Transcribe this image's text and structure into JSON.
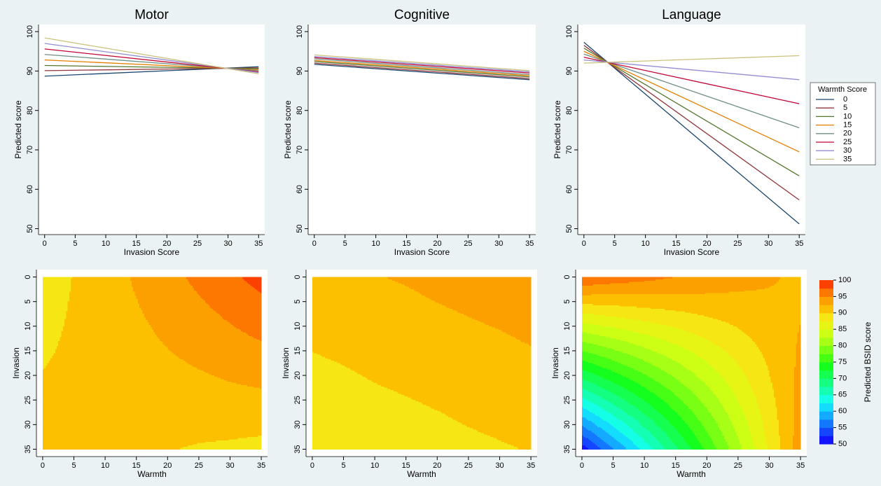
{
  "chart_data": [
    {
      "type": "line",
      "title": "Motor",
      "xlabel": "Invasion Score",
      "ylabel": "Predicted score",
      "x": [
        0,
        35
      ],
      "xlim": [
        -1,
        36
      ],
      "ylim": [
        48.5,
        101.8
      ],
      "xticks": [
        0,
        5,
        10,
        15,
        20,
        25,
        30,
        35
      ],
      "yticks": [
        50,
        60,
        70,
        80,
        90,
        100
      ],
      "series": [
        {
          "color": "#1a476f",
          "values": [
            88.7,
            91.1
          ]
        },
        {
          "color": "#90353b",
          "values": [
            90.1,
            90.8
          ]
        },
        {
          "color": "#55752f",
          "values": [
            91.4,
            90.6
          ]
        },
        {
          "color": "#e37e00",
          "values": [
            92.8,
            90.3
          ]
        },
        {
          "color": "#6e8e84",
          "values": [
            94.2,
            90.1
          ]
        },
        {
          "color": "#c10534",
          "values": [
            95.6,
            89.8
          ]
        },
        {
          "color": "#938dd2",
          "values": [
            97.0,
            89.6
          ]
        },
        {
          "color": "#cac27e",
          "values": [
            98.4,
            89.3
          ]
        }
      ]
    },
    {
      "type": "line",
      "title": "Cognitive",
      "xlabel": "Invasion Score",
      "ylabel": "Predicted score",
      "x": [
        0,
        35
      ],
      "xlim": [
        -1,
        36
      ],
      "ylim": [
        48.5,
        101.8
      ],
      "xticks": [
        0,
        5,
        10,
        15,
        20,
        25,
        30,
        35
      ],
      "yticks": [
        50,
        60,
        70,
        80,
        90,
        100
      ],
      "series": [
        {
          "color": "#1a476f",
          "values": [
            91.7,
            87.8
          ]
        },
        {
          "color": "#90353b",
          "values": [
            92.0,
            88.1
          ]
        },
        {
          "color": "#55752f",
          "values": [
            92.4,
            88.5
          ]
        },
        {
          "color": "#e37e00",
          "values": [
            92.7,
            88.8
          ]
        },
        {
          "color": "#6e8e84",
          "values": [
            93.1,
            89.1
          ]
        },
        {
          "color": "#c10534",
          "values": [
            93.4,
            89.5
          ]
        },
        {
          "color": "#938dd2",
          "values": [
            93.7,
            89.8
          ]
        },
        {
          "color": "#cac27e",
          "values": [
            94.1,
            90.1
          ]
        }
      ]
    },
    {
      "type": "line",
      "title": "Language",
      "xlabel": "Invasion Score",
      "ylabel": "Predicted score",
      "x": [
        0,
        35
      ],
      "xlim": [
        -1,
        36
      ],
      "ylim": [
        48.5,
        101.8
      ],
      "xticks": [
        0,
        5,
        10,
        15,
        20,
        25,
        30,
        35
      ],
      "yticks": [
        50,
        60,
        70,
        80,
        90,
        100
      ],
      "legend": "right",
      "legend_title": "Warmth Score",
      "series": [
        {
          "name": "0",
          "color": "#1a476f",
          "values": [
            97.3,
            51.2
          ]
        },
        {
          "name": "5",
          "color": "#90353b",
          "values": [
            96.5,
            57.3
          ]
        },
        {
          "name": "10",
          "color": "#55752f",
          "values": [
            95.8,
            63.4
          ]
        },
        {
          "name": "15",
          "color": "#e37e00",
          "values": [
            95.0,
            69.5
          ]
        },
        {
          "name": "20",
          "color": "#6e8e84",
          "values": [
            94.3,
            75.6
          ]
        },
        {
          "name": "25",
          "color": "#c10534",
          "values": [
            93.5,
            81.7
          ]
        },
        {
          "name": "30",
          "color": "#938dd2",
          "values": [
            92.8,
            87.8
          ]
        },
        {
          "name": "35",
          "color": "#cac27e",
          "values": [
            92.0,
            93.9
          ]
        }
      ]
    },
    {
      "type": "contour",
      "xlabel": "Warmth",
      "ylabel": "Invasion",
      "x": [
        0,
        5,
        10,
        15,
        20,
        25,
        30,
        35
      ],
      "y": [
        0,
        35
      ],
      "z": [
        [
          88.7,
          90.1,
          91.4,
          92.8,
          94.2,
          95.6,
          97.0,
          98.4
        ],
        [
          91.1,
          90.8,
          90.6,
          90.3,
          90.1,
          89.8,
          89.6,
          89.3
        ]
      ],
      "xlim": [
        -1,
        36
      ],
      "ylim": [
        -1.5,
        36.5
      ],
      "yreverse": true,
      "xticks": [
        0,
        5,
        10,
        15,
        20,
        25,
        30,
        35
      ],
      "yticks": [
        0,
        5,
        10,
        15,
        20,
        25,
        30,
        35
      ],
      "levels": [
        50,
        52.5,
        55,
        57.5,
        60,
        62.5,
        65,
        67.5,
        70,
        72.5,
        75,
        77.5,
        80,
        82.5,
        85,
        87.5,
        90,
        92.5,
        95,
        97.5,
        100
      ],
      "colors": [
        "#1414ff",
        "#1446ff",
        "#1478ff",
        "#14aaff",
        "#14dcff",
        "#14ffe6",
        "#14ffb4",
        "#14ff82",
        "#14ff50",
        "#14ff1e",
        "#46ff14",
        "#78ff14",
        "#a6ff14",
        "#ccff14",
        "#e6f514",
        "#f5e614",
        "#fcc000",
        "#fca000",
        "#fc7800",
        "#fc4000"
      ]
    },
    {
      "type": "contour",
      "xlabel": "Warmth",
      "ylabel": "Invasion",
      "x": [
        0,
        5,
        10,
        15,
        20,
        25,
        30,
        35
      ],
      "y": [
        0,
        35
      ],
      "z": [
        [
          91.7,
          92.0,
          92.4,
          92.7,
          93.1,
          93.4,
          93.7,
          94.1
        ],
        [
          87.8,
          88.1,
          88.5,
          88.8,
          89.1,
          89.5,
          89.8,
          90.1
        ]
      ],
      "xlim": [
        -1,
        36
      ],
      "ylim": [
        -1.5,
        36.5
      ],
      "yreverse": true,
      "xticks": [
        0,
        5,
        10,
        15,
        20,
        25,
        30,
        35
      ],
      "yticks": [
        0,
        5,
        10,
        15,
        20,
        25,
        30,
        35
      ],
      "levels": [
        50,
        52.5,
        55,
        57.5,
        60,
        62.5,
        65,
        67.5,
        70,
        72.5,
        75,
        77.5,
        80,
        82.5,
        85,
        87.5,
        90,
        92.5,
        95,
        97.5,
        100
      ],
      "colors": [
        "#1414ff",
        "#1446ff",
        "#1478ff",
        "#14aaff",
        "#14dcff",
        "#14ffe6",
        "#14ffb4",
        "#14ff82",
        "#14ff50",
        "#14ff1e",
        "#46ff14",
        "#78ff14",
        "#a6ff14",
        "#ccff14",
        "#e6f514",
        "#f5e614",
        "#fcc000",
        "#fca000",
        "#fc7800",
        "#fc4000"
      ]
    },
    {
      "type": "contour",
      "xlabel": "Warmth",
      "ylabel": "Invasion",
      "x": [
        0,
        5,
        10,
        15,
        20,
        25,
        30,
        35
      ],
      "y": [
        0,
        35
      ],
      "z": [
        [
          97.3,
          96.5,
          95.8,
          95.0,
          94.3,
          93.5,
          92.8,
          92.0
        ],
        [
          51.2,
          57.3,
          63.4,
          69.5,
          75.6,
          81.7,
          87.8,
          93.9
        ]
      ],
      "xlim": [
        -1,
        36
      ],
      "ylim": [
        -1.5,
        36.5
      ],
      "yreverse": true,
      "xticks": [
        0,
        5,
        10,
        15,
        20,
        25,
        30,
        35
      ],
      "yticks": [
        0,
        5,
        10,
        15,
        20,
        25,
        30,
        35
      ],
      "levels": [
        50,
        52.5,
        55,
        57.5,
        60,
        62.5,
        65,
        67.5,
        70,
        72.5,
        75,
        77.5,
        80,
        82.5,
        85,
        87.5,
        90,
        92.5,
        95,
        97.5,
        100
      ],
      "colors": [
        "#1414ff",
        "#1446ff",
        "#1478ff",
        "#14aaff",
        "#14dcff",
        "#14ffe6",
        "#14ffb4",
        "#14ff82",
        "#14ff50",
        "#14ff1e",
        "#46ff14",
        "#78ff14",
        "#a6ff14",
        "#ccff14",
        "#e6f514",
        "#f5e614",
        "#fcc000",
        "#fca000",
        "#fc7800",
        "#fc4000"
      ],
      "colorbar_label": "Predicted BSID score",
      "colorbar_ticks": [
        50,
        55,
        60,
        65,
        70,
        75,
        80,
        85,
        90,
        95,
        100
      ]
    }
  ]
}
